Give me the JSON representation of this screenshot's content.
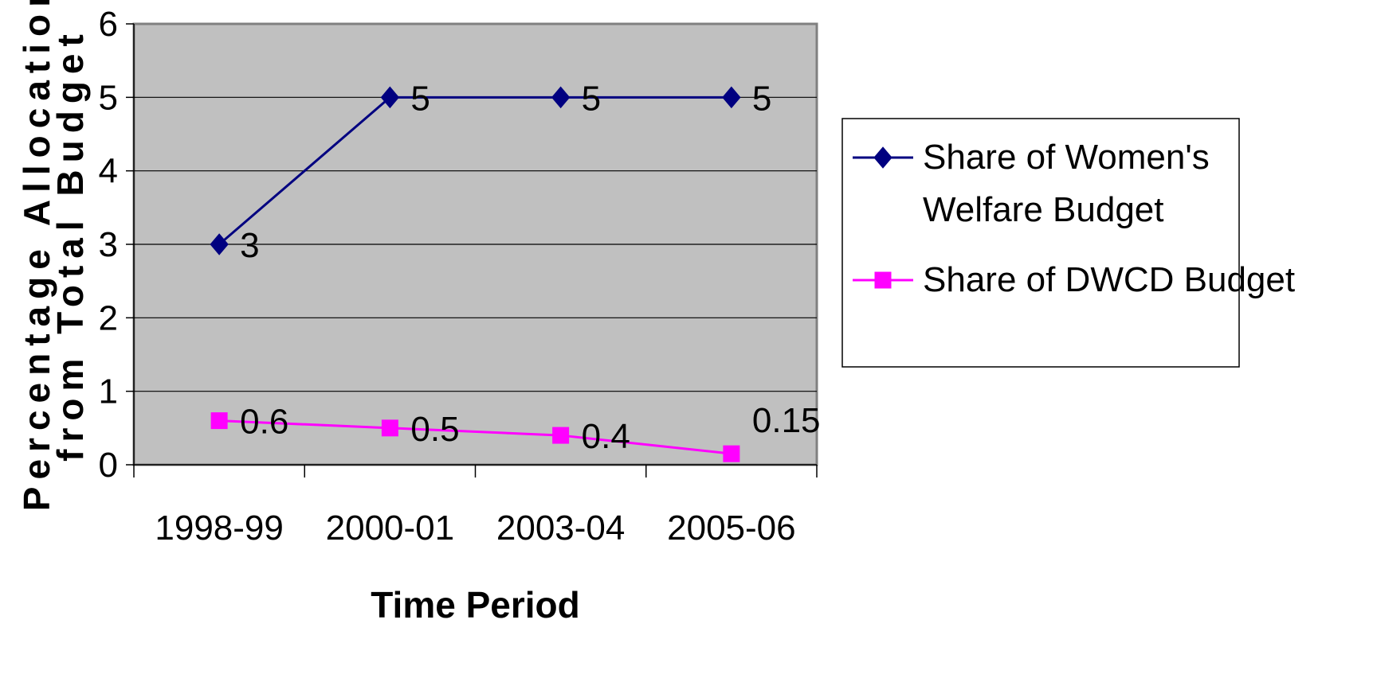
{
  "chart_data": {
    "type": "line",
    "categories": [
      "1998-99",
      "2000-01",
      "2003-04",
      "2005-06"
    ],
    "series": [
      {
        "name": "Share of Women's Welfare Budget",
        "values": [
          3,
          5,
          5,
          5
        ],
        "data_labels": [
          "3",
          "5",
          "5",
          "5"
        ],
        "color": "#000080",
        "marker": "diamond"
      },
      {
        "name": "Share of DWCD Budget",
        "values": [
          0.6,
          0.5,
          0.4,
          0.15
        ],
        "data_labels": [
          "0.6",
          "0.5",
          "0.4",
          "0.15"
        ],
        "color": "#FF00FF",
        "marker": "square"
      }
    ],
    "legend_lines": [
      [
        "Share of Women's",
        "Welfare Budget"
      ],
      [
        "Share of DWCD Budget"
      ]
    ],
    "title": "",
    "xlabel": "Time Period",
    "ylabel_lines": [
      "Percentage Allocation",
      "from Total Budget"
    ],
    "ylim": [
      0,
      6
    ],
    "yticks": [
      0,
      1,
      2,
      3,
      4,
      5,
      6
    ],
    "grid": true,
    "plot_background": "#C0C0C0",
    "legend_position": "right"
  }
}
